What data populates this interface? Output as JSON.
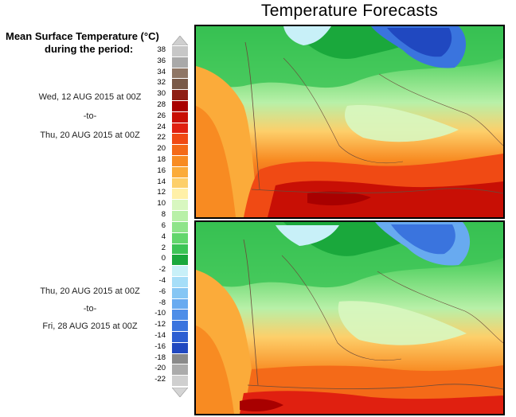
{
  "title": "Temperature Forecasts",
  "legend": {
    "heading_line1": "Mean Surface Temperature (°C)",
    "heading_line2": "during the period:",
    "scale": [
      {
        "label": "38",
        "color": "#c7c7c7"
      },
      {
        "label": "36",
        "color": "#a9a9a9"
      },
      {
        "label": "34",
        "color": "#8f7665"
      },
      {
        "label": "32",
        "color": "#7a5a48"
      },
      {
        "label": "30",
        "color": "#8e1f14"
      },
      {
        "label": "28",
        "color": "#a80000"
      },
      {
        "label": "26",
        "color": "#c80f05"
      },
      {
        "label": "24",
        "color": "#e02010"
      },
      {
        "label": "22",
        "color": "#f04a14"
      },
      {
        "label": "20",
        "color": "#f46a18"
      },
      {
        "label": "18",
        "color": "#f88b22"
      },
      {
        "label": "16",
        "color": "#fbab3a"
      },
      {
        "label": "14",
        "color": "#fdcf6a"
      },
      {
        "label": "12",
        "color": "#fff0a8"
      },
      {
        "label": "10",
        "color": "#d8f7c0"
      },
      {
        "label": "8",
        "color": "#b8f0a8"
      },
      {
        "label": "6",
        "color": "#8ee48a"
      },
      {
        "label": "4",
        "color": "#62d66c"
      },
      {
        "label": "2",
        "color": "#3cc456"
      },
      {
        "label": "0",
        "color": "#1aa83c"
      },
      {
        "label": "-2",
        "color": "#c8f0f8"
      },
      {
        "label": "-4",
        "color": "#a6def8"
      },
      {
        "label": "-6",
        "color": "#86c6f4"
      },
      {
        "label": "-8",
        "color": "#68aaf0"
      },
      {
        "label": "-10",
        "color": "#4e8ee8"
      },
      {
        "label": "-12",
        "color": "#3a74de"
      },
      {
        "label": "-14",
        "color": "#2c5ed2"
      },
      {
        "label": "-16",
        "color": "#2048c0"
      },
      {
        "label": "-18",
        "color": "#8a8a8a"
      },
      {
        "label": "-20",
        "color": "#ababab"
      },
      {
        "label": "-22",
        "color": "#cfcfcf"
      }
    ]
  },
  "periods": [
    {
      "start": "Wed, 12 AUG 2015 at 00Z",
      "separator": "-to-",
      "end": "Thu, 20 AUG 2015 at 00Z"
    },
    {
      "start": "Thu, 20 AUG 2015 at 00Z",
      "separator": "-to-",
      "end": "Fri, 28 AUG 2015 at 00Z"
    }
  ]
}
